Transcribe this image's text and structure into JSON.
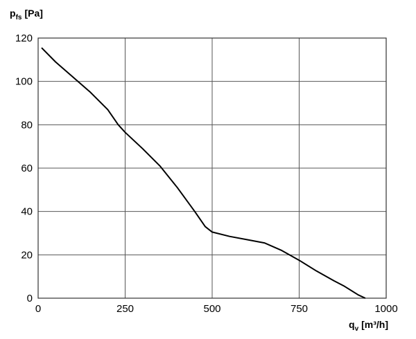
{
  "chart_data": {
    "type": "line",
    "xlabel": {
      "symbol": "q",
      "subscript": "v",
      "unit": "[m³/h]"
    },
    "ylabel": {
      "symbol": "p",
      "subscript": "fs",
      "unit": "[Pa]"
    },
    "x": [
      10,
      50,
      100,
      150,
      200,
      230,
      250,
      300,
      350,
      400,
      450,
      480,
      500,
      550,
      600,
      650,
      700,
      750,
      800,
      850,
      880,
      920,
      940
    ],
    "values": [
      115.5,
      109,
      102,
      95,
      87,
      80,
      76.5,
      69,
      61,
      51,
      40,
      33,
      30.5,
      28.5,
      27,
      25.5,
      22,
      17.5,
      12.5,
      8,
      5.5,
      1.5,
      0
    ],
    "color": "#000000",
    "xlim": [
      0,
      1000
    ],
    "xticks": [
      0,
      250,
      500,
      750,
      1000
    ],
    "ylim": [
      0,
      120
    ],
    "yticks": [
      0,
      20,
      40,
      60,
      80,
      100,
      120
    ],
    "grid": true
  }
}
